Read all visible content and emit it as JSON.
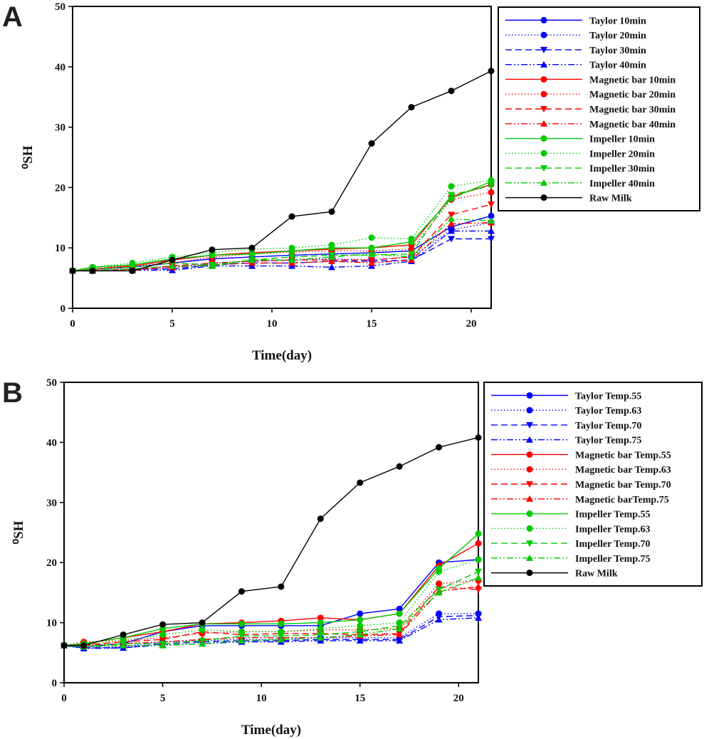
{
  "figure": {
    "panels": [
      "A",
      "B"
    ]
  },
  "chart_data": [
    {
      "type": "line",
      "panel": "A",
      "title": "",
      "xlabel": "Time(day)",
      "ylabel": "⁰SH",
      "xlim": [
        0,
        21
      ],
      "ylim": [
        0,
        50
      ],
      "xticks": [
        0,
        5,
        10,
        15,
        20
      ],
      "yticks": [
        0,
        10,
        20,
        30,
        40,
        50
      ],
      "legend_position": "right-outside-top",
      "x": [
        0,
        1,
        3,
        5,
        7,
        9,
        11,
        13,
        15,
        17,
        19,
        21
      ],
      "series": [
        {
          "name": "Taylor 10min",
          "color": "#0000ff",
          "dash": "solid",
          "marker": "circle",
          "values": [
            6.2,
            6.5,
            6.8,
            7.5,
            8.2,
            8.5,
            8.8,
            9.0,
            9.2,
            9.5,
            13.5,
            15.3
          ]
        },
        {
          "name": "Taylor 20min",
          "color": "#0000ff",
          "dash": "dot",
          "marker": "circle",
          "values": [
            6.2,
            6.3,
            6.5,
            6.8,
            7.5,
            7.8,
            8.0,
            8.2,
            8.0,
            8.5,
            13.0,
            14.2
          ]
        },
        {
          "name": "Taylor 30min",
          "color": "#0000ff",
          "dash": "dash",
          "marker": "triangle-down",
          "values": [
            6.2,
            6.2,
            6.5,
            6.5,
            7.2,
            7.5,
            7.5,
            7.8,
            7.8,
            8.0,
            11.5,
            11.5
          ]
        },
        {
          "name": "Taylor 40min",
          "color": "#0000ff",
          "dash": "dashdotdot",
          "marker": "triangle-up",
          "values": [
            6.2,
            6.2,
            6.3,
            6.3,
            7.0,
            7.0,
            7.0,
            6.8,
            7.0,
            7.8,
            12.8,
            12.8
          ]
        },
        {
          "name": "Magnetic bar 10min",
          "color": "#ff0000",
          "dash": "solid",
          "marker": "circle",
          "values": [
            6.2,
            6.5,
            7.0,
            8.0,
            8.8,
            9.2,
            9.5,
            9.8,
            10.0,
            10.5,
            18.5,
            20.5
          ]
        },
        {
          "name": "Magnetic bar 20min",
          "color": "#ff0000",
          "dash": "dot",
          "marker": "circle",
          "values": [
            6.2,
            6.8,
            7.0,
            7.5,
            8.5,
            9.0,
            9.3,
            9.5,
            9.5,
            9.8,
            18.0,
            19.2
          ]
        },
        {
          "name": "Magnetic bar 30min",
          "color": "#ff0000",
          "dash": "dash",
          "marker": "triangle-down",
          "values": [
            6.2,
            6.3,
            6.5,
            7.0,
            7.5,
            7.8,
            8.0,
            8.0,
            8.0,
            8.5,
            15.5,
            17.2
          ]
        },
        {
          "name": "Magnetic bar 40min",
          "color": "#ff0000",
          "dash": "dashdotdot",
          "marker": "triangle-up",
          "values": [
            6.2,
            6.2,
            6.3,
            6.8,
            7.2,
            7.5,
            7.5,
            7.8,
            7.5,
            8.0,
            14.0,
            14.2
          ]
        },
        {
          "name": "Impeller 10min",
          "color": "#00cc00",
          "dash": "solid",
          "marker": "circle",
          "values": [
            6.2,
            6.8,
            7.2,
            8.2,
            8.8,
            9.0,
            9.5,
            10.0,
            10.0,
            11.0,
            18.2,
            21.0
          ]
        },
        {
          "name": "Impeller 20min",
          "color": "#00cc00",
          "dash": "dot",
          "marker": "circle",
          "values": [
            6.2,
            6.8,
            7.5,
            8.5,
            9.2,
            9.8,
            10.0,
            10.5,
            11.7,
            11.5,
            20.2,
            21.2
          ]
        },
        {
          "name": "Impeller 30min",
          "color": "#00cc00",
          "dash": "dash",
          "marker": "triangle-down",
          "values": [
            6.2,
            6.5,
            6.8,
            7.5,
            7.2,
            8.0,
            8.5,
            8.8,
            8.8,
            9.0,
            18.8,
            20.3
          ]
        },
        {
          "name": "Impeller 40min",
          "color": "#00cc00",
          "dash": "dashdotdot",
          "marker": "triangle-up",
          "values": [
            6.2,
            6.3,
            6.5,
            7.0,
            7.0,
            8.0,
            8.0,
            8.5,
            9.0,
            8.5,
            14.8,
            14.5
          ]
        },
        {
          "name": "Raw Milk",
          "color": "#000000",
          "dash": "solid",
          "marker": "circle",
          "values": [
            6.2,
            6.2,
            6.2,
            8.0,
            9.7,
            10.0,
            15.2,
            16.0,
            27.3,
            33.3,
            36.0,
            39.3
          ]
        }
      ]
    },
    {
      "type": "line",
      "panel": "B",
      "title": "",
      "xlabel": "Time(day)",
      "ylabel": "⁰SH",
      "xlim": [
        0,
        21
      ],
      "ylim": [
        0,
        50
      ],
      "xticks": [
        0,
        5,
        10,
        15,
        20
      ],
      "yticks": [
        0,
        10,
        20,
        30,
        40,
        50
      ],
      "legend_position": "right-outside-top",
      "x": [
        0,
        1,
        3,
        5,
        7,
        9,
        11,
        13,
        15,
        17,
        19,
        21
      ],
      "series": [
        {
          "name": "Taylor Temp.55",
          "color": "#0000ff",
          "dash": "solid",
          "marker": "circle",
          "values": [
            6.2,
            6.0,
            6.5,
            8.5,
            9.5,
            9.5,
            9.5,
            9.5,
            11.5,
            12.3,
            20.0,
            20.5
          ]
        },
        {
          "name": "Taylor Temp.63",
          "color": "#0000ff",
          "dash": "dot",
          "marker": "circle",
          "values": [
            6.2,
            5.8,
            6.0,
            6.8,
            7.0,
            7.2,
            7.2,
            7.5,
            7.5,
            7.5,
            11.5,
            11.5
          ]
        },
        {
          "name": "Taylor Temp.70",
          "color": "#0000ff",
          "dash": "dash",
          "marker": "triangle-down",
          "values": [
            6.2,
            5.8,
            5.8,
            6.5,
            6.8,
            7.0,
            7.0,
            7.2,
            7.2,
            7.2,
            11.0,
            11.2
          ]
        },
        {
          "name": "Taylor Temp.75",
          "color": "#0000ff",
          "dash": "dashdotdot",
          "marker": "triangle-up",
          "values": [
            6.2,
            5.7,
            5.8,
            6.3,
            6.5,
            6.8,
            6.8,
            7.0,
            7.0,
            7.0,
            10.5,
            10.8
          ]
        },
        {
          "name": "Magnetic bar Temp.55",
          "color": "#ff0000",
          "dash": "solid",
          "marker": "circle",
          "values": [
            6.2,
            6.5,
            7.5,
            8.5,
            9.8,
            10.0,
            10.3,
            10.8,
            10.5,
            11.5,
            19.5,
            23.2
          ]
        },
        {
          "name": "Magnetic bar Temp.63",
          "color": "#ff0000",
          "dash": "dot",
          "marker": "circle",
          "values": [
            6.2,
            6.8,
            7.0,
            7.5,
            8.2,
            8.5,
            8.5,
            8.8,
            8.8,
            9.0,
            16.5,
            17.0
          ]
        },
        {
          "name": "Magnetic bar Temp.70",
          "color": "#ff0000",
          "dash": "dash",
          "marker": "triangle-down",
          "values": [
            6.2,
            6.3,
            6.8,
            7.2,
            8.5,
            8.0,
            8.2,
            8.2,
            8.0,
            8.2,
            16.0,
            15.5
          ]
        },
        {
          "name": "Magnetic barTemp.75",
          "color": "#ff0000",
          "dash": "dashdotdot",
          "marker": "triangle-up",
          "values": [
            6.2,
            6.2,
            6.5,
            6.8,
            7.2,
            7.5,
            7.5,
            7.5,
            7.8,
            8.0,
            15.2,
            16.0
          ]
        },
        {
          "name": "Impeller Temp.55",
          "color": "#00cc00",
          "dash": "solid",
          "marker": "circle",
          "values": [
            6.2,
            6.5,
            7.5,
            9.0,
            9.8,
            9.8,
            9.8,
            10.0,
            10.5,
            11.5,
            19.0,
            24.8
          ]
        },
        {
          "name": "Impeller Temp.63",
          "color": "#00cc00",
          "dash": "dot",
          "marker": "circle",
          "values": [
            6.2,
            6.2,
            7.0,
            8.0,
            8.8,
            8.5,
            8.5,
            9.0,
            9.5,
            10.0,
            18.5,
            20.5
          ]
        },
        {
          "name": "Impeller Temp.70",
          "color": "#00cc00",
          "dash": "dash",
          "marker": "triangle-down",
          "values": [
            6.2,
            6.0,
            6.5,
            6.5,
            7.0,
            7.8,
            7.8,
            8.0,
            8.5,
            9.5,
            15.5,
            18.5
          ]
        },
        {
          "name": "Impeller Temp.75",
          "color": "#00cc00",
          "dash": "dashdotdot",
          "marker": "triangle-up",
          "values": [
            6.2,
            6.0,
            6.2,
            6.2,
            6.5,
            7.0,
            7.2,
            7.5,
            8.0,
            9.0,
            15.0,
            17.5
          ]
        },
        {
          "name": "Raw Milk",
          "color": "#000000",
          "dash": "solid",
          "marker": "circle",
          "values": [
            6.2,
            6.2,
            8.0,
            9.7,
            10.0,
            15.2,
            16.0,
            27.3,
            33.3,
            36.0,
            39.2,
            40.8
          ]
        }
      ]
    }
  ]
}
